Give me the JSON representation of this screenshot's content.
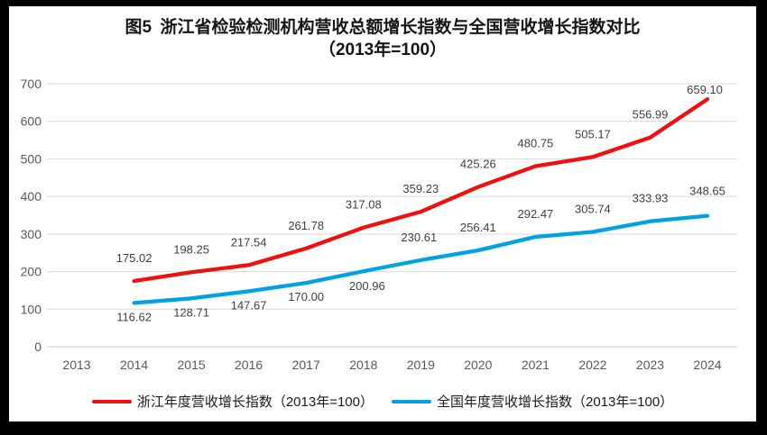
{
  "title": {
    "line1": "图5 浙江省检验检测机构营收总额增长指数与全国营收增长指数对比",
    "line2": "（2013年=100）"
  },
  "chart_data": {
    "type": "line",
    "title": "图5 浙江省检验检测机构营收总额增长指数与全国营收增长指数对比（2013年=100）",
    "axis_years": [
      "2013",
      "2014",
      "2015",
      "2016",
      "2017",
      "2018",
      "2019",
      "2020",
      "2021",
      "2022",
      "2023",
      "2024"
    ],
    "data_years": [
      2014,
      2015,
      2016,
      2017,
      2018,
      2019,
      2020,
      2021,
      2022,
      2023,
      2024
    ],
    "ylim": [
      0,
      700
    ],
    "ytick_step": 100,
    "grid": true,
    "legend_position": "bottom",
    "colors": {
      "grid": "#D9D9D9",
      "axis_line": "#C9C9C9",
      "tick_text": "#595959",
      "label_text": "#404040"
    },
    "series": [
      {
        "id": "zhejiang",
        "name": "浙江年度营收增长指数（2013年=100）",
        "color": "#ED1111",
        "values": [
          175.02,
          198.25,
          217.54,
          261.78,
          317.08,
          359.23,
          425.26,
          480.75,
          505.17,
          556.99,
          659.1
        ],
        "labels": [
          "175.02",
          "198.25",
          "217.54",
          "261.78",
          "317.08",
          "359.23",
          "425.26",
          "480.75",
          "505.17",
          "556.99",
          "659.10"
        ],
        "label_offsets": [
          [
            0,
            -21
          ],
          [
            0,
            -21
          ],
          [
            0,
            -21
          ],
          [
            0,
            -21
          ],
          [
            0,
            -21
          ],
          [
            0,
            -21
          ],
          [
            0,
            -21
          ],
          [
            0,
            -21
          ],
          [
            0,
            -21
          ],
          [
            0,
            -21
          ],
          [
            -3,
            -6
          ]
        ]
      },
      {
        "id": "national",
        "name": "全国年度营收增长指数（2013年=100）",
        "color": "#00A2E1",
        "values": [
          116.62,
          128.71,
          147.67,
          170.0,
          200.96,
          230.61,
          256.41,
          292.47,
          305.74,
          333.93,
          348.65
        ],
        "labels": [
          "116.62",
          "128.71",
          "147.67",
          "170.00",
          "200.96",
          "230.61",
          "256.41",
          "292.47",
          "305.74",
          "333.93",
          "348.65"
        ],
        "label_offsets": [
          [
            0,
            20
          ],
          [
            0,
            20
          ],
          [
            0,
            20
          ],
          [
            0,
            20
          ],
          [
            4,
            21
          ],
          [
            -2,
            -21
          ],
          [
            0,
            -21
          ],
          [
            0,
            -21
          ],
          [
            0,
            -21
          ],
          [
            0,
            -21
          ],
          [
            0,
            -23
          ]
        ]
      }
    ]
  },
  "legend": [
    {
      "label": "浙江年度营收增长指数（2013年=100）",
      "color": "#ED1111"
    },
    {
      "label": "全国年度营收增长指数（2013年=100）",
      "color": "#00A2E1"
    }
  ]
}
